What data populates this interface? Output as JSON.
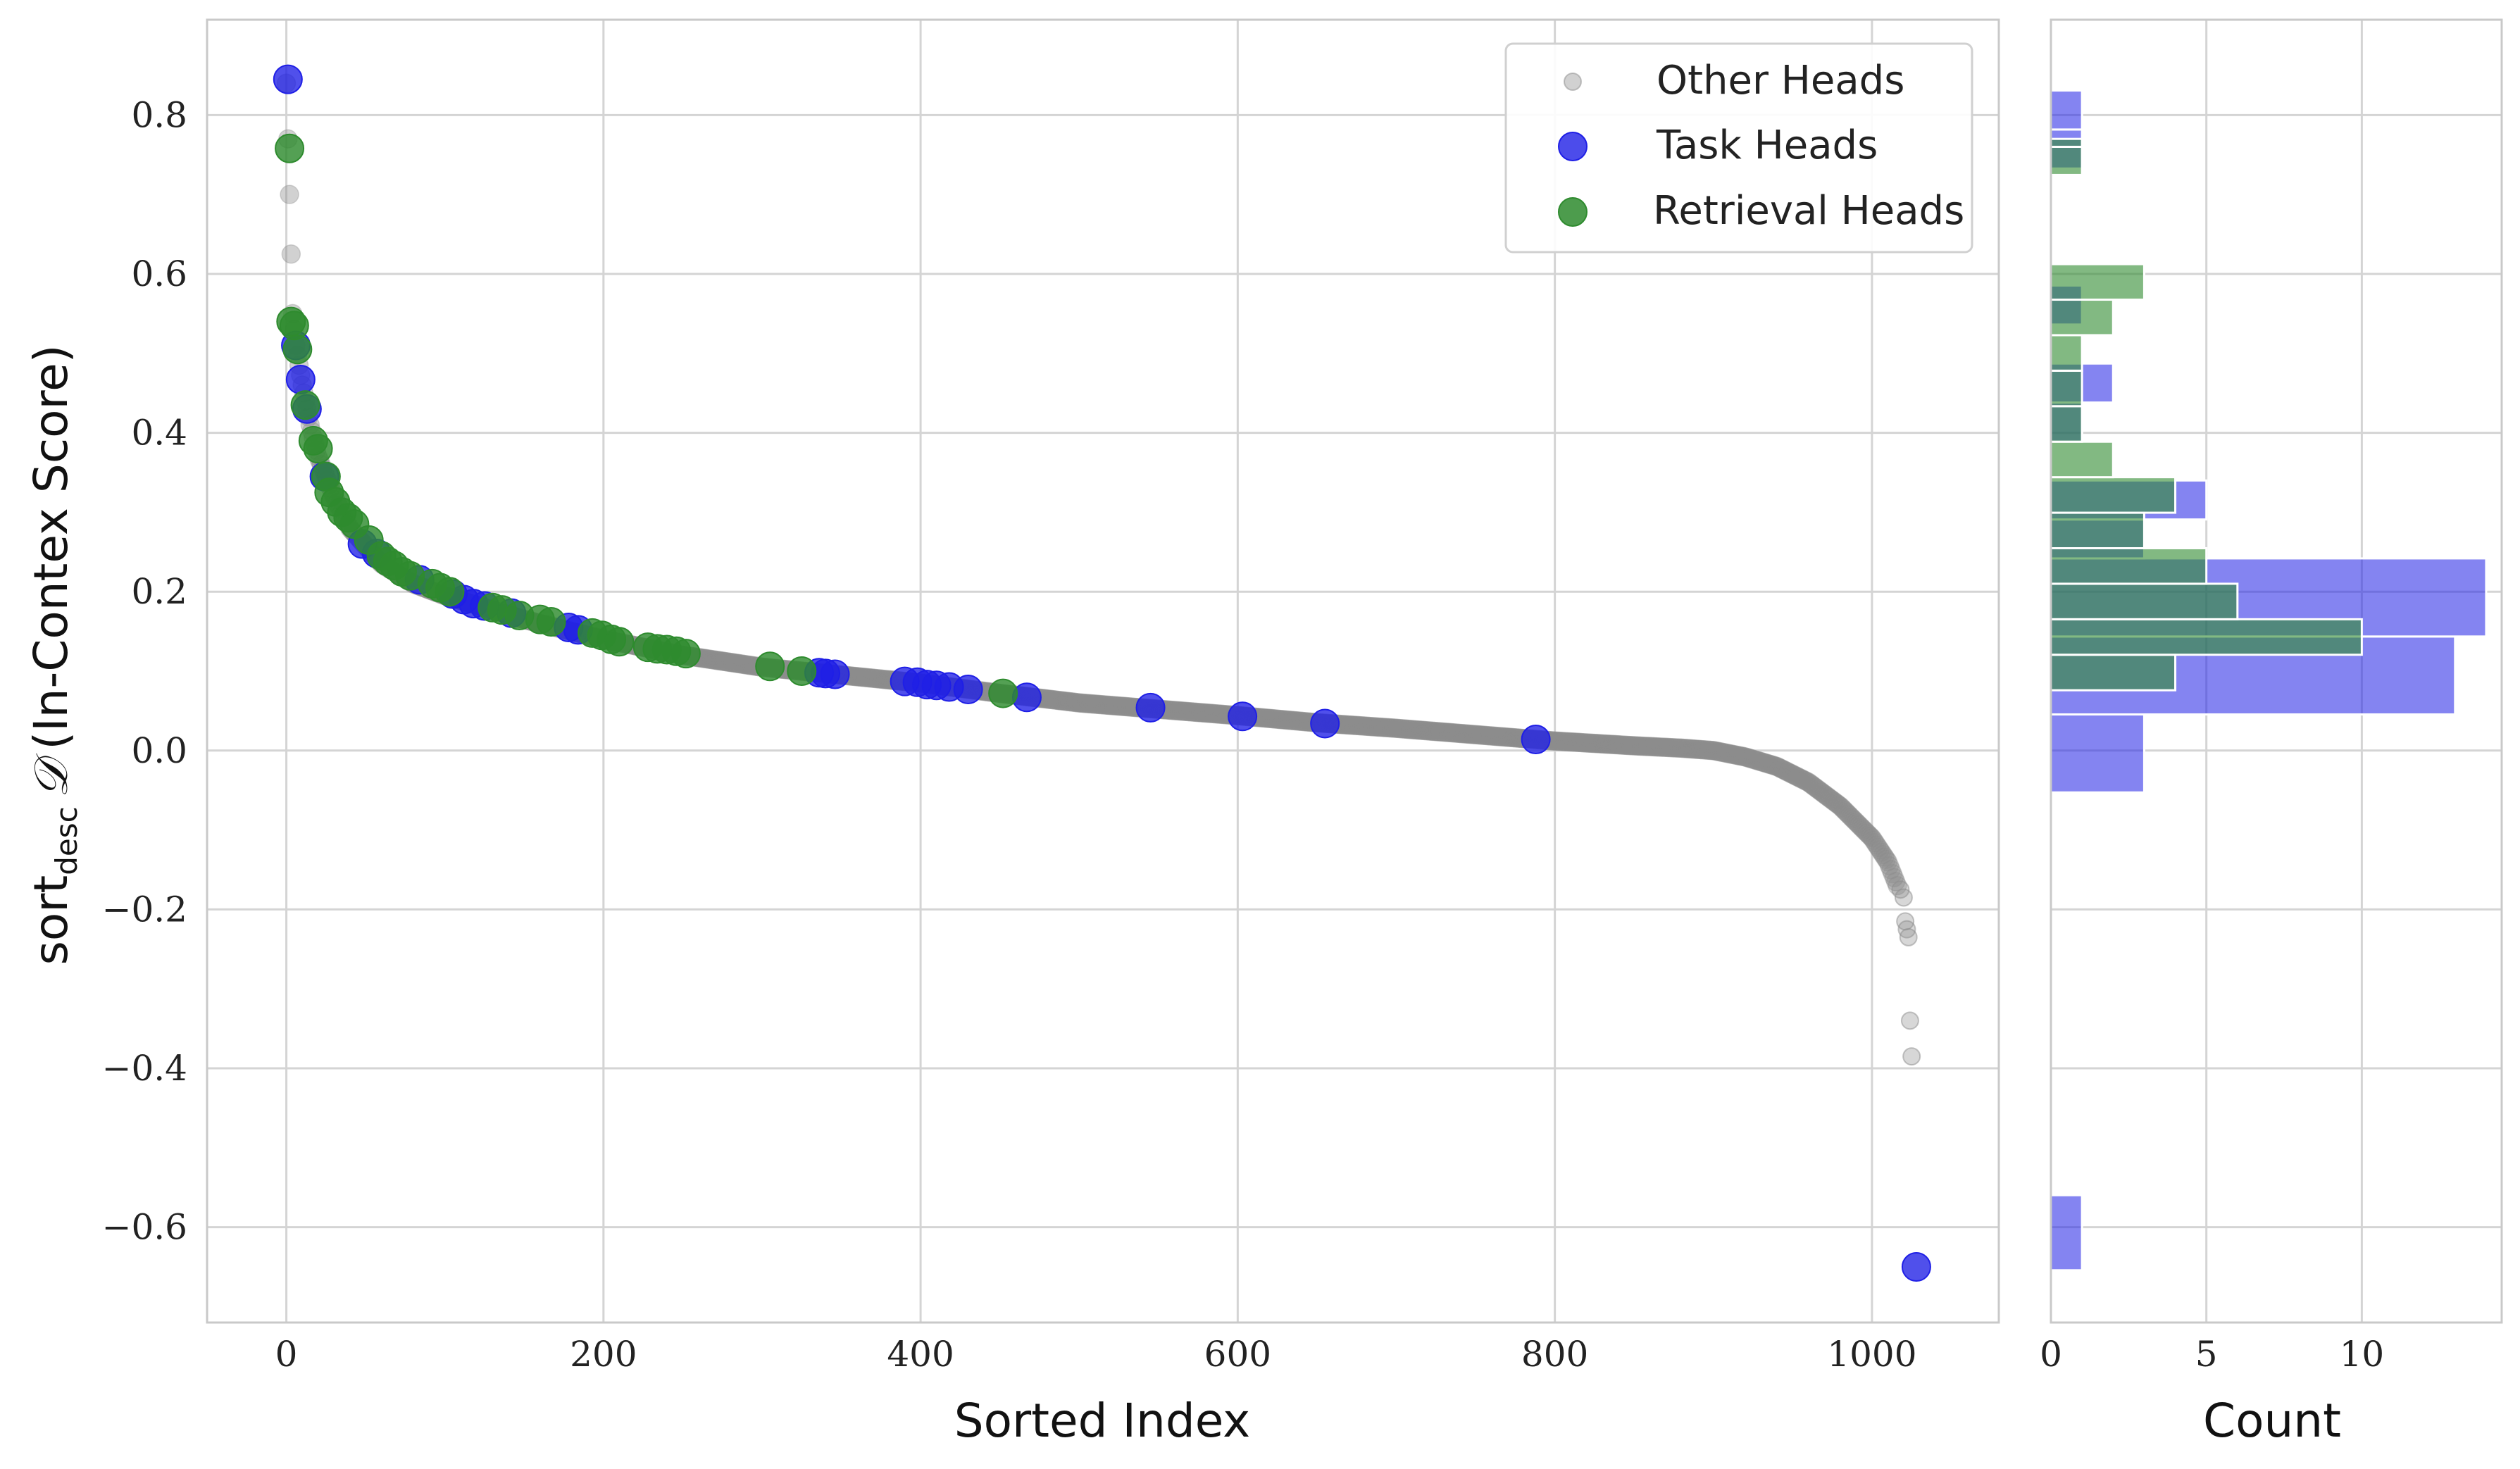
{
  "chart_data": [
    {
      "type": "scatter",
      "xlabel": "Sorted Index",
      "ylabel": {
        "prefix": "sort",
        "subscript": "desc",
        "symbol": "𝒟",
        "suffix": "(In-Contex Score)"
      },
      "xlim": [
        -50,
        1080
      ],
      "ylim": [
        -0.72,
        0.92
      ],
      "xticks": [
        0,
        200,
        400,
        600,
        800,
        1000
      ],
      "yticks": [
        -0.6,
        -0.4,
        -0.2,
        0.0,
        0.2,
        0.4,
        0.6,
        0.8
      ],
      "ytick_labels": [
        "−0.6",
        "−0.4",
        "−0.2",
        "0.0",
        "0.2",
        "0.4",
        "0.6",
        "0.8"
      ],
      "grid": true,
      "legend_position": "top-right",
      "colors": {
        "other": "#8c8c8c",
        "task": "#1f1fe6",
        "retrieval": "#2e8b2e"
      },
      "series": [
        {
          "name": "Other Heads",
          "curve_points": [
            [
              0,
              0.84
            ],
            [
              2,
              0.7
            ],
            [
              4,
              0.55
            ],
            [
              6,
              0.51
            ],
            [
              10,
              0.46
            ],
            [
              15,
              0.41
            ],
            [
              20,
              0.37
            ],
            [
              30,
              0.32
            ],
            [
              40,
              0.28
            ],
            [
              60,
              0.235
            ],
            [
              80,
              0.21
            ],
            [
              100,
              0.195
            ],
            [
              150,
              0.165
            ],
            [
              200,
              0.14
            ],
            [
              250,
              0.12
            ],
            [
              300,
              0.105
            ],
            [
              350,
              0.095
            ],
            [
              400,
              0.085
            ],
            [
              450,
              0.072
            ],
            [
              500,
              0.06
            ],
            [
              550,
              0.052
            ],
            [
              600,
              0.044
            ],
            [
              650,
              0.035
            ],
            [
              700,
              0.028
            ],
            [
              750,
              0.02
            ],
            [
              800,
              0.012
            ],
            [
              850,
              0.006
            ],
            [
              880,
              0.003
            ],
            [
              900,
              0.0
            ],
            [
              920,
              -0.008
            ],
            [
              940,
              -0.02
            ],
            [
              960,
              -0.04
            ],
            [
              980,
              -0.07
            ],
            [
              1000,
              -0.11
            ],
            [
              1010,
              -0.14
            ],
            [
              1016,
              -0.17
            ]
          ],
          "outliers": [
            [
              1018,
              -0.175
            ],
            [
              1020,
              -0.185
            ],
            [
              1021,
              -0.215
            ],
            [
              1022,
              -0.225
            ],
            [
              1023,
              -0.235
            ],
            [
              1024,
              -0.34
            ],
            [
              1025,
              -0.385
            ]
          ]
        },
        {
          "name": "Task Heads",
          "points": [
            [
              1,
              0.845
            ],
            [
              6,
              0.51
            ],
            [
              9,
              0.467
            ],
            [
              13,
              0.43
            ],
            [
              24,
              0.345
            ],
            [
              48,
              0.26
            ],
            [
              57,
              0.248
            ],
            [
              84,
              0.215
            ],
            [
              105,
              0.197
            ],
            [
              112,
              0.19
            ],
            [
              118,
              0.185
            ],
            [
              125,
              0.182
            ],
            [
              142,
              0.173
            ],
            [
              178,
              0.155
            ],
            [
              184,
              0.152
            ],
            [
              336,
              0.098
            ],
            [
              340,
              0.097
            ],
            [
              346,
              0.096
            ],
            [
              390,
              0.087
            ],
            [
              398,
              0.086
            ],
            [
              404,
              0.083
            ],
            [
              410,
              0.082
            ],
            [
              418,
              0.08
            ],
            [
              430,
              0.077
            ],
            [
              467,
              0.067
            ],
            [
              545,
              0.054
            ],
            [
              603,
              0.043
            ],
            [
              655,
              0.034
            ],
            [
              788,
              0.014
            ],
            [
              1028,
              -0.65
            ]
          ]
        },
        {
          "name": "Retrieval Heads",
          "points": [
            [
              2,
              0.758
            ],
            [
              3,
              0.54
            ],
            [
              5,
              0.535
            ],
            [
              7,
              0.505
            ],
            [
              12,
              0.435
            ],
            [
              17,
              0.39
            ],
            [
              20,
              0.38
            ],
            [
              25,
              0.345
            ],
            [
              27,
              0.325
            ],
            [
              31,
              0.313
            ],
            [
              35,
              0.3
            ],
            [
              39,
              0.293
            ],
            [
              43,
              0.285
            ],
            [
              52,
              0.265
            ],
            [
              60,
              0.245
            ],
            [
              64,
              0.238
            ],
            [
              68,
              0.233
            ],
            [
              73,
              0.225
            ],
            [
              78,
              0.22
            ],
            [
              92,
              0.21
            ],
            [
              97,
              0.205
            ],
            [
              103,
              0.2
            ],
            [
              130,
              0.18
            ],
            [
              136,
              0.177
            ],
            [
              147,
              0.17
            ],
            [
              160,
              0.165
            ],
            [
              167,
              0.162
            ],
            [
              193,
              0.148
            ],
            [
              199,
              0.145
            ],
            [
              205,
              0.14
            ],
            [
              210,
              0.137
            ],
            [
              228,
              0.13
            ],
            [
              234,
              0.128
            ],
            [
              240,
              0.127
            ],
            [
              246,
              0.125
            ],
            [
              252,
              0.122
            ],
            [
              305,
              0.106
            ],
            [
              325,
              0.1
            ],
            [
              452,
              0.072
            ]
          ]
        }
      ]
    },
    {
      "type": "bar",
      "orientation": "horizontal",
      "xlabel": "Count",
      "xticks": [
        0,
        5,
        10
      ],
      "xlim": [
        0,
        14.5
      ],
      "bin_edges": [
        -0.6,
        -0.5,
        -0.4,
        -0.3,
        -0.2,
        -0.1,
        0.0,
        0.1,
        0.2,
        0.3,
        0.4,
        0.5,
        0.6,
        0.7,
        0.8
      ],
      "series": [
        {
          "name": "Task Heads",
          "bins": [
            [
              -0.6542,
              -0.5597,
              1
            ],
            [
              -0.0527,
              0.0455,
              3
            ],
            [
              0.0455,
              0.1436,
              13
            ],
            [
              0.1436,
              0.2419,
              14
            ],
            [
              0.2419,
              0.2909,
              3
            ],
            [
              0.2909,
              0.34,
              5
            ],
            [
              0.389,
              0.4381,
              1
            ],
            [
              0.4381,
              0.4872,
              2
            ],
            [
              0.5363,
              0.5854,
              1
            ],
            [
              0.7327,
              0.7818,
              1
            ],
            [
              0.7818,
              0.8309,
              1
            ]
          ]
        },
        {
          "name": "Retrieval Heads",
          "bins": [
            [
              0.0759,
              0.1206,
              4
            ],
            [
              0.1206,
              0.1653,
              10
            ],
            [
              0.1653,
              0.21,
              6
            ],
            [
              0.21,
              0.2547,
              5
            ],
            [
              0.2547,
              0.2994,
              3
            ],
            [
              0.2994,
              0.3441,
              4
            ],
            [
              0.3441,
              0.3888,
              2
            ],
            [
              0.3888,
              0.4335,
              1
            ],
            [
              0.4335,
              0.4782,
              1
            ],
            [
              0.4782,
              0.5229,
              1
            ],
            [
              0.5229,
              0.5676,
              2
            ],
            [
              0.5676,
              0.6123,
              3
            ],
            [
              0.7246,
              0.76,
              1
            ],
            [
              0.76,
              0.77,
              1
            ]
          ]
        }
      ]
    }
  ]
}
